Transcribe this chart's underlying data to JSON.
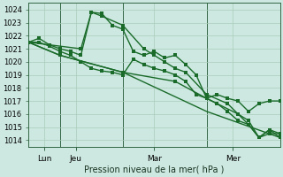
{
  "title": "Pression niveau de la mer( hPa )",
  "bg_color": "#cce8e0",
  "grid_color": "#aaccbb",
  "line_color": "#1a6b2a",
  "spine_color": "#336644",
  "xlim": [
    0,
    24
  ],
  "ylim": [
    1013.5,
    1024.5
  ],
  "yticks": [
    1014,
    1015,
    1016,
    1017,
    1018,
    1019,
    1020,
    1021,
    1022,
    1023,
    1024
  ],
  "xtick_positions": [
    1.5,
    4.5,
    12,
    19.5
  ],
  "xtick_labels": [
    "Lun",
    "Jeu",
    "Mar",
    "Mer"
  ],
  "vlines": [
    3,
    9,
    17
  ],
  "series1_nomarker": {
    "x": [
      0,
      3,
      9,
      17,
      24
    ],
    "y": [
      1021.5,
      1020.5,
      1019.2,
      1016.2,
      1014.2
    ]
  },
  "series2": {
    "x": [
      0,
      1,
      2,
      3,
      4,
      5,
      6,
      7,
      8,
      9,
      10,
      11,
      12,
      13,
      14,
      15,
      16,
      17,
      18,
      19,
      20,
      21,
      22,
      23,
      24
    ],
    "y": [
      1021.5,
      1021.8,
      1021.3,
      1021.0,
      1020.8,
      1020.5,
      1023.8,
      1023.7,
      1022.8,
      1022.5,
      1020.8,
      1020.5,
      1020.8,
      1020.3,
      1020.5,
      1019.8,
      1019.0,
      1017.2,
      1017.5,
      1017.2,
      1017.0,
      1016.2,
      1016.8,
      1017.0,
      1017.0
    ]
  },
  "series3": {
    "x": [
      0,
      1,
      2,
      3,
      4,
      5,
      6,
      7,
      8,
      9,
      10,
      11,
      12,
      13,
      14,
      15,
      16,
      17,
      18,
      19,
      20,
      21,
      22,
      23,
      24
    ],
    "y": [
      1021.5,
      1021.5,
      1021.2,
      1020.8,
      1020.5,
      1020.0,
      1019.5,
      1019.3,
      1019.2,
      1019.0,
      1020.2,
      1019.8,
      1019.5,
      1019.3,
      1019.0,
      1018.5,
      1017.5,
      1017.2,
      1016.8,
      1016.2,
      1015.5,
      1015.2,
      1014.2,
      1014.5,
      1014.5
    ]
  },
  "series4": {
    "x": [
      0,
      3,
      9,
      14,
      17,
      20,
      21,
      22,
      23,
      24
    ],
    "y": [
      1021.5,
      1020.5,
      1019.2,
      1018.5,
      1017.2,
      1016.0,
      1015.5,
      1014.2,
      1014.8,
      1014.5
    ]
  },
  "series5_spike": {
    "x": [
      0,
      5,
      6,
      7,
      9,
      11,
      12,
      13,
      14,
      15,
      17,
      19,
      20,
      21,
      22,
      23,
      24
    ],
    "y": [
      1021.5,
      1021.0,
      1023.8,
      1023.5,
      1022.8,
      1021.0,
      1020.5,
      1020.0,
      1019.5,
      1019.2,
      1017.5,
      1016.8,
      1016.0,
      1015.2,
      1014.2,
      1014.8,
      1014.2
    ]
  }
}
